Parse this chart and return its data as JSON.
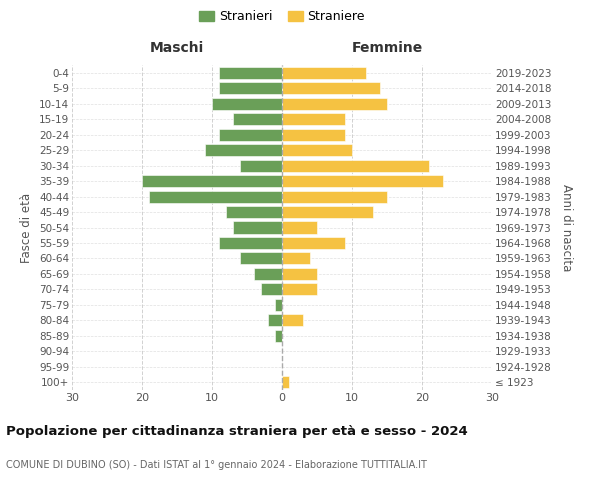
{
  "age_groups": [
    "100+",
    "95-99",
    "90-94",
    "85-89",
    "80-84",
    "75-79",
    "70-74",
    "65-69",
    "60-64",
    "55-59",
    "50-54",
    "45-49",
    "40-44",
    "35-39",
    "30-34",
    "25-29",
    "20-24",
    "15-19",
    "10-14",
    "5-9",
    "0-4"
  ],
  "birth_years": [
    "≤ 1923",
    "1924-1928",
    "1929-1933",
    "1934-1938",
    "1939-1943",
    "1944-1948",
    "1949-1953",
    "1954-1958",
    "1959-1963",
    "1964-1968",
    "1969-1973",
    "1974-1978",
    "1979-1983",
    "1984-1988",
    "1989-1993",
    "1994-1998",
    "1999-2003",
    "2004-2008",
    "2009-2013",
    "2014-2018",
    "2019-2023"
  ],
  "maschi": [
    0,
    0,
    0,
    1,
    2,
    1,
    3,
    4,
    6,
    9,
    7,
    8,
    19,
    20,
    6,
    11,
    9,
    7,
    10,
    9,
    9
  ],
  "femmine": [
    1,
    0,
    0,
    0,
    3,
    0,
    5,
    5,
    4,
    9,
    5,
    13,
    15,
    23,
    21,
    10,
    9,
    9,
    15,
    14,
    12
  ],
  "maschi_color": "#6a9f58",
  "femmine_color": "#f5c242",
  "grid_color": "#cccccc",
  "title": "Popolazione per cittadinanza straniera per età e sesso - 2024",
  "subtitle": "COMUNE DI DUBINO (SO) - Dati ISTAT al 1° gennaio 2024 - Elaborazione TUTTITALIA.IT",
  "xlabel_left": "Maschi",
  "xlabel_right": "Femmine",
  "ylabel_left": "Fasce di età",
  "ylabel_right": "Anni di nascita",
  "legend_maschi": "Stranieri",
  "legend_femmine": "Straniere",
  "xlim": 30
}
